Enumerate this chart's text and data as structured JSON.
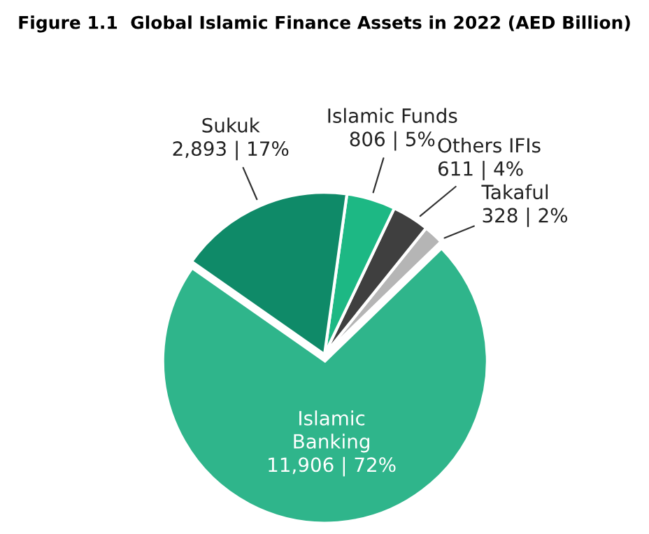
{
  "chart_data": {
    "type": "pie",
    "title": "Figure 1.1  Global Islamic Finance Assets in 2022 (AED Billion)",
    "categories": [
      "Islamic Banking",
      "Takaful",
      "Others IFIs",
      "Islamic Funds",
      "Sukuk"
    ],
    "values": [
      11906,
      328,
      611,
      806,
      2893
    ],
    "value_labels": [
      "11,906 | 72%",
      "328 | 2%",
      "611 | 4%",
      "806 | 5%",
      "2,893 | 17%"
    ],
    "colors": [
      "#2fb58b",
      "#b5b5b5",
      "#3f3f3f",
      "#1db884",
      "#0f8a68"
    ],
    "legend": false
  }
}
